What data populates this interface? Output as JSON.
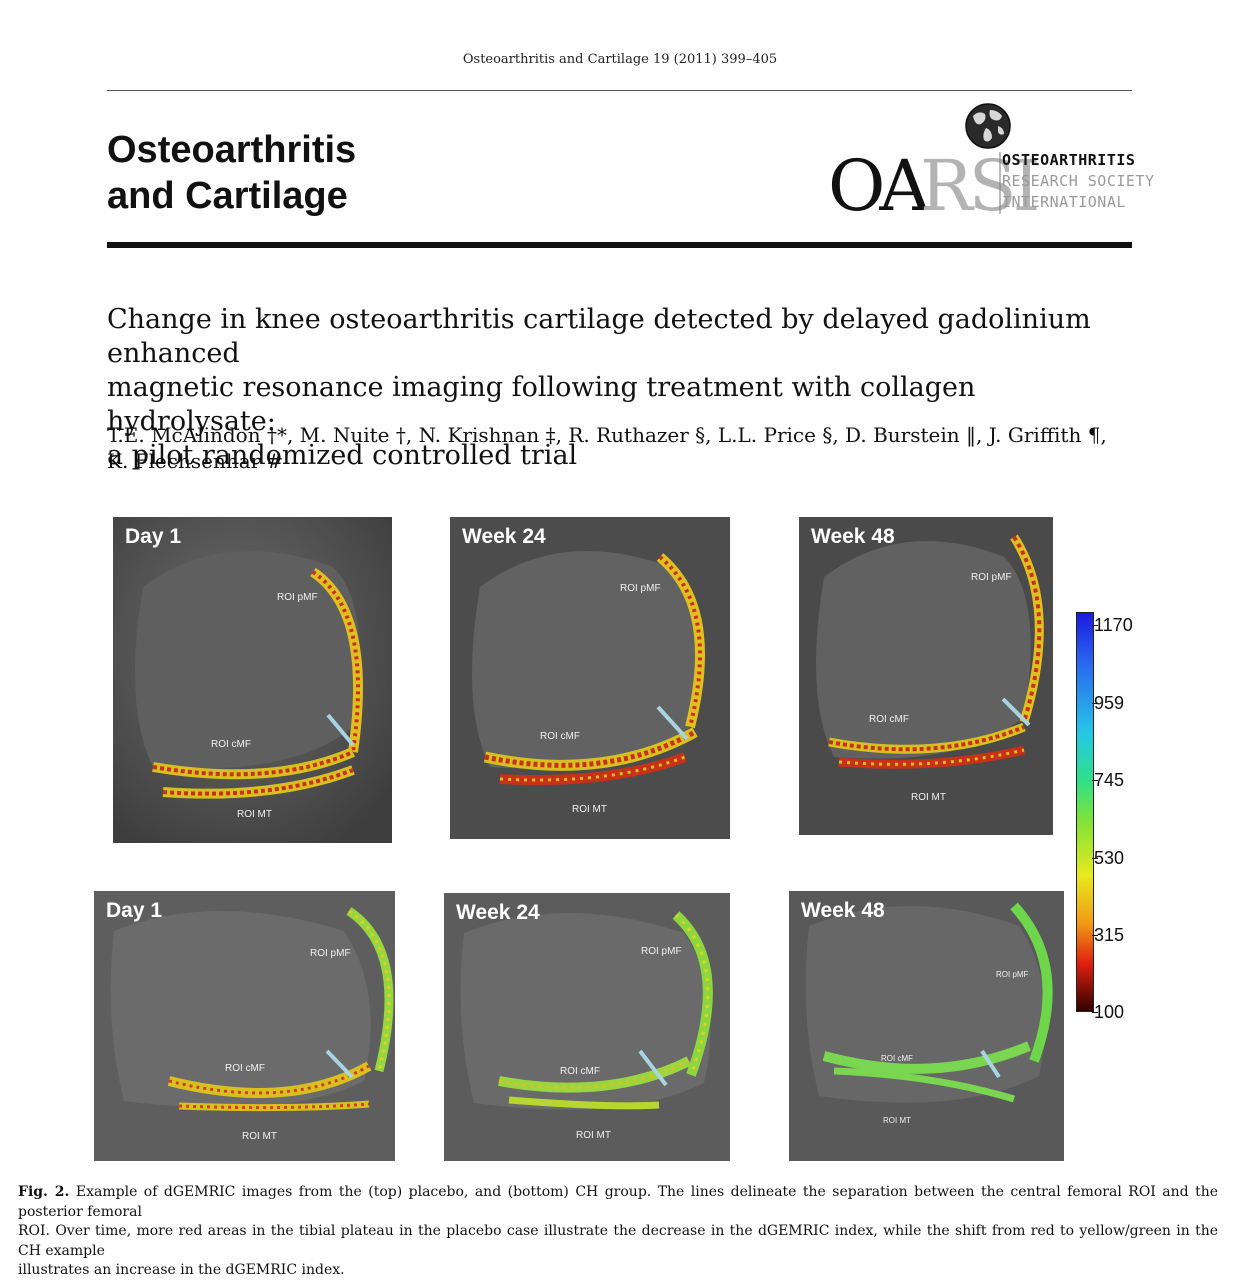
{
  "header": {
    "journal_citation": "Osteoarthritis and Cartilage 19 (2011) 399–405",
    "journal_title_line1": "Osteoarthritis",
    "journal_title_line2": "and Cartilage",
    "logo": {
      "mark": "OARSI",
      "org_line1": "OSTEOARTHRITIS",
      "org_line2": "RESEARCH SOCIETY",
      "org_line3": "INTERNATIONAL",
      "icon": "globe-icon"
    }
  },
  "article": {
    "title_line1": "Change in knee osteoarthritis cartilage detected by delayed gadolinium enhanced",
    "title_line2": "magnetic resonance imaging following treatment with collagen hydrolysate:",
    "title_line3": "a pilot randomized controlled trial",
    "authors_line1": "T.E. McAlindon †*, M. Nuite †, N. Krishnan ‡, R. Ruthazer §, L.L. Price §, D. Burstein ‖, J. Griffith ¶,",
    "authors_line2": "K. Flechsenhar #"
  },
  "figure": {
    "top_row": [
      {
        "label": "Day 1",
        "roi_pmf": "ROI  pMF",
        "roi_cmf": "ROI  cMF",
        "roi_mt": "ROI  MT"
      },
      {
        "label": "Week 24",
        "roi_pmf": "ROI  pMF",
        "roi_cmf": "ROI  cMF",
        "roi_mt": "ROI  MT"
      },
      {
        "label": "Week 48",
        "roi_pmf": "ROI  pMF",
        "roi_cmf": "ROI  cMF",
        "roi_mt": "ROI  MT"
      }
    ],
    "bottom_row": [
      {
        "label": "Day 1",
        "roi_pmf": "ROI pMF",
        "roi_cmf": "ROI cMF",
        "roi_mt": "ROI MT"
      },
      {
        "label": "Week 24",
        "roi_pmf": "ROI pMF",
        "roi_cmf": "ROI cMF",
        "roi_mt": "ROI MT"
      },
      {
        "label": "Week 48",
        "roi_pmf": "ROI pMF",
        "roi_cmf": "ROI cMF",
        "roi_mt": "ROI MT"
      }
    ],
    "colorbar": {
      "ticks": [
        "1170",
        "959",
        "745",
        "530",
        "315",
        "100"
      ],
      "colors_top_to_bottom": [
        "#1a1ae0",
        "#26c6e8",
        "#2ee08a",
        "#e8ea1e",
        "#e02010",
        "#300000"
      ]
    },
    "caption_label": "Fig. 2.",
    "caption_line1": "Example of dGEMRIC images from the (top) placebo, and (bottom) CH group. The lines delineate the separation between the central femoral ROI and the posterior femoral",
    "caption_line2": "ROI. Over time, more red areas in the tibial plateau in the placebo case illustrate the decrease in the dGEMRIC index, while the shift from red to yellow/green in the CH example",
    "caption_line3": "illustrates an increase in the dGEMRIC index."
  }
}
